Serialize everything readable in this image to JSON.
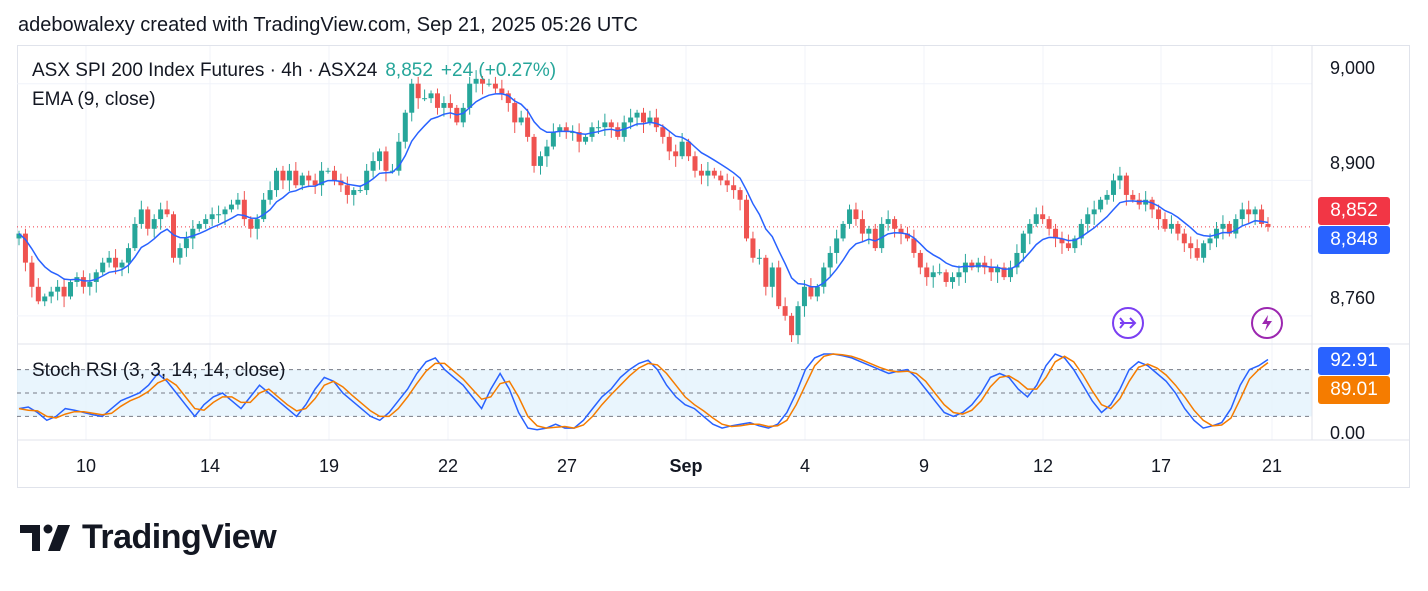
{
  "header": {
    "attribution": "adebowalexy created with TradingView.com, Sep 21, 2025 05:26 UTC"
  },
  "legend": {
    "symbol": "ASX SPI 200 Index Futures · 4h · ASX24",
    "last_price": "8,852",
    "change": "+24 (+0.27%)",
    "ema_label": "EMA (9, close)",
    "stoch_label": "Stoch RSI (3, 3, 14, 14, close)"
  },
  "price_axis": {
    "ticks": [
      "9,000",
      "8,900",
      "8,760"
    ]
  },
  "stoch_axis": {
    "ticks": [
      "0.00"
    ]
  },
  "tags": {
    "last_price": "8,852",
    "ema": "8,848",
    "stoch_k": "92.91",
    "stoch_d": "89.01"
  },
  "colors": {
    "up": "#26a69a",
    "down": "#ef5350",
    "ema": "#2962ff",
    "k": "#2962ff",
    "d": "#f57c00",
    "last": "#f23645",
    "band": "#e3f2fd"
  },
  "x_axis": {
    "labels": [
      "10",
      "14",
      "19",
      "22",
      "27",
      "Sep",
      "4",
      "9",
      "12",
      "17",
      "21"
    ]
  },
  "event_icons": [
    "split-icon",
    "lightning-icon"
  ],
  "brand": {
    "name": "TradingView"
  },
  "chart_data": [
    {
      "type": "candlestick",
      "title": "ASX SPI 200 Index Futures · 4h · ASX24",
      "ylim": [
        8735,
        9040
      ],
      "ema_period": 9,
      "closes": [
        8845,
        8815,
        8790,
        8775,
        8780,
        8785,
        8790,
        8780,
        8795,
        8800,
        8790,
        8795,
        8805,
        8815,
        8820,
        8810,
        8815,
        8830,
        8855,
        8870,
        8850,
        8860,
        8870,
        8865,
        8820,
        8830,
        8840,
        8850,
        8855,
        8860,
        8865,
        8865,
        8870,
        8875,
        8880,
        8860,
        8850,
        8860,
        8880,
        8890,
        8910,
        8900,
        8910,
        8895,
        8905,
        8900,
        8895,
        8910,
        8910,
        8900,
        8895,
        8885,
        8890,
        8890,
        8910,
        8920,
        8930,
        8910,
        8910,
        8940,
        8970,
        9000,
        8985,
        8985,
        8990,
        8975,
        8980,
        8975,
        8960,
        8975,
        9000,
        9005,
        9000,
        9000,
        8995,
        8990,
        8980,
        8960,
        8965,
        8945,
        8915,
        8925,
        8935,
        8950,
        8955,
        8950,
        8950,
        8940,
        8945,
        8955,
        8955,
        8960,
        8955,
        8945,
        8960,
        8965,
        8970,
        8960,
        8965,
        8955,
        8945,
        8930,
        8925,
        8940,
        8925,
        8910,
        8905,
        8910,
        8905,
        8900,
        8895,
        8890,
        8880,
        8840,
        8820,
        8820,
        8790,
        8810,
        8770,
        8760,
        8740,
        8770,
        8790,
        8780,
        8790,
        8810,
        8825,
        8840,
        8855,
        8870,
        8860,
        8845,
        8850,
        8830,
        8855,
        8860,
        8850,
        8845,
        8840,
        8825,
        8810,
        8800,
        8805,
        8805,
        8795,
        8800,
        8805,
        8815,
        8810,
        8815,
        8810,
        8805,
        8810,
        8800,
        8810,
        8825,
        8845,
        8855,
        8865,
        8860,
        8850,
        8840,
        8835,
        8830,
        8840,
        8855,
        8865,
        8870,
        8880,
        8885,
        8900,
        8905,
        8885,
        8880,
        8875,
        8880,
        8870,
        8860,
        8850,
        8855,
        8845,
        8835,
        8830,
        8820,
        8835,
        8840,
        8850,
        8855,
        8845,
        8860,
        8870,
        8865,
        8870,
        8855,
        8852
      ]
    },
    {
      "type": "line",
      "title": "Stoch RSI (3, 3, 14, 14, close)",
      "ylim": [
        0,
        100
      ],
      "bands": [
        20,
        50,
        80
      ],
      "series": [
        {
          "name": "K",
          "values": [
            30,
            32,
            25,
            15,
            20,
            30,
            28,
            25,
            22,
            20,
            30,
            40,
            45,
            50,
            60,
            75,
            65,
            50,
            35,
            20,
            35,
            45,
            50,
            40,
            30,
            45,
            60,
            50,
            40,
            30,
            20,
            35,
            55,
            70,
            65,
            50,
            40,
            30,
            20,
            15,
            25,
            40,
            55,
            75,
            90,
            95,
            80,
            70,
            60,
            45,
            30,
            55,
            75,
            55,
            25,
            5,
            3,
            5,
            10,
            5,
            5,
            15,
            30,
            45,
            55,
            70,
            80,
            88,
            92,
            80,
            60,
            45,
            35,
            30,
            20,
            10,
            5,
            8,
            10,
            12,
            8,
            5,
            10,
            25,
            50,
            80,
            95,
            100,
            100,
            98,
            95,
            90,
            85,
            80,
            75,
            78,
            80,
            70,
            55,
            40,
            25,
            20,
            25,
            35,
            50,
            70,
            75,
            70,
            55,
            45,
            60,
            85,
            100,
            95,
            80,
            60,
            40,
            25,
            35,
            55,
            80,
            90,
            85,
            75,
            65,
            50,
            30,
            15,
            5,
            8,
            12,
            30,
            60,
            80,
            85,
            92.91
          ]
        },
        {
          "name": "D",
          "values": [
            30,
            28,
            27,
            20,
            18,
            23,
            26,
            26,
            24,
            22,
            24,
            33,
            40,
            45,
            52,
            63,
            68,
            60,
            45,
            30,
            28,
            38,
            45,
            45,
            38,
            38,
            50,
            55,
            45,
            35,
            27,
            30,
            43,
            60,
            65,
            58,
            47,
            37,
            27,
            20,
            20,
            30,
            45,
            62,
            78,
            88,
            88,
            78,
            68,
            55,
            42,
            45,
            62,
            65,
            45,
            20,
            8,
            5,
            6,
            7,
            5,
            9,
            20,
            35,
            48,
            60,
            72,
            82,
            88,
            86,
            75,
            60,
            45,
            35,
            27,
            18,
            10,
            7,
            8,
            10,
            10,
            7,
            8,
            15,
            35,
            60,
            85,
            97,
            100,
            99,
            97,
            93,
            88,
            83,
            79,
            77,
            78,
            75,
            65,
            50,
            35,
            25,
            23,
            28,
            40,
            58,
            70,
            72,
            65,
            55,
            55,
            70,
            90,
            97,
            90,
            73,
            53,
            35,
            30,
            43,
            65,
            83,
            87,
            82,
            73,
            60,
            45,
            28,
            15,
            8,
            9,
            18,
            42,
            68,
            80,
            89.01
          ]
        }
      ]
    }
  ]
}
